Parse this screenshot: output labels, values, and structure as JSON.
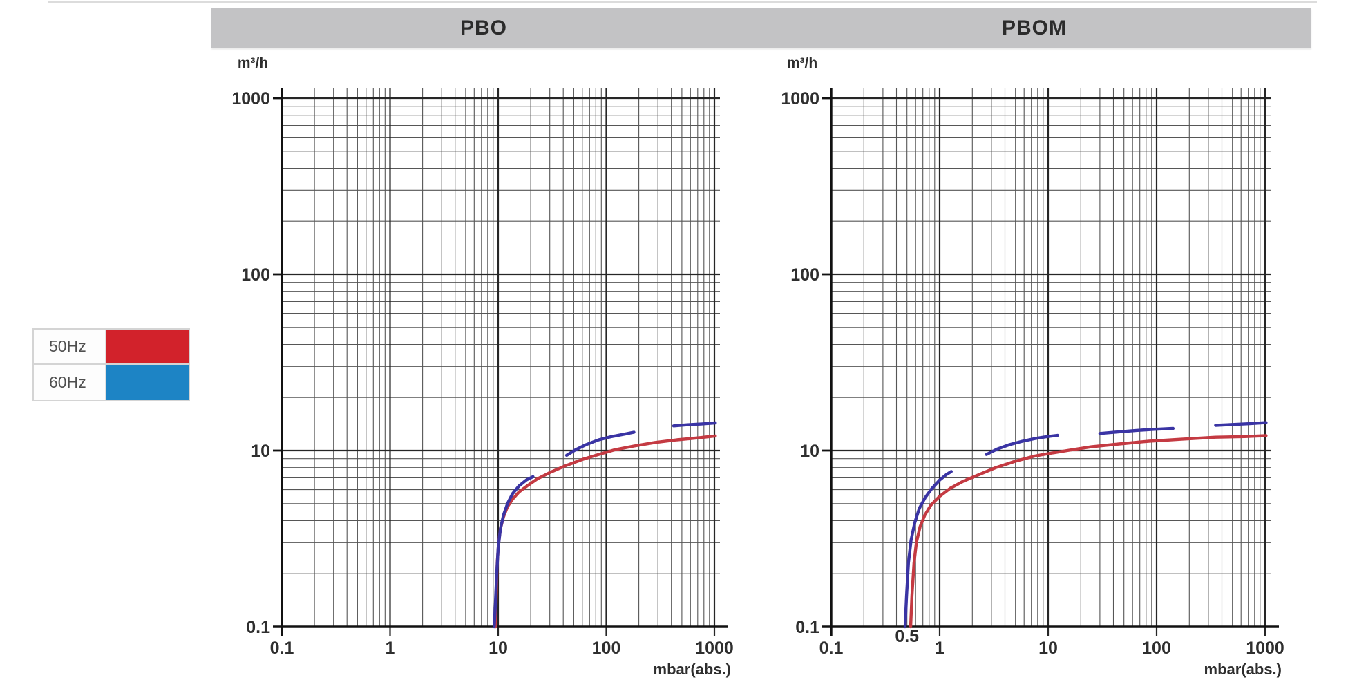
{
  "header": {
    "sections": [
      {
        "label": "PBO"
      },
      {
        "label": "PBOM"
      }
    ],
    "background": "#c3c3c5"
  },
  "legend": {
    "rows": [
      {
        "label": "50Hz",
        "color": "#d2222b"
      },
      {
        "label": "60Hz",
        "color": "#1d84c5"
      }
    ]
  },
  "colors": {
    "grid_minor": "#565656",
    "grid_major": "#262626",
    "axis": "#111111",
    "tick_label": "#2e2e2e",
    "curve_50hz": "#c43a42",
    "curve_60hz": "#3a34a4",
    "header_bg": "#c3c3c5",
    "legend_border": "#d4d4d4",
    "page_bg": "#ffffff"
  },
  "chart_data": [
    {
      "type": "line",
      "title": "PBO",
      "y_unit_label": "m³/h",
      "x_unit_label": "mbar(abs.)",
      "x_scale": "log",
      "y_scale": "log",
      "x_range": [
        0.1,
        1000
      ],
      "grid": true,
      "axis_note": "y axis compressed below 10: bottom gridline labeled 0.1, minor lines 2-9 above it",
      "x_tick_labels": [
        {
          "value": 0.1,
          "label": "0.1"
        },
        {
          "value": 1,
          "label": "1"
        },
        {
          "value": 10,
          "label": "10"
        },
        {
          "value": 100,
          "label": "100"
        },
        {
          "value": 1000,
          "label": "1000"
        }
      ],
      "x_extra_labels": [],
      "y_tick_labels": [
        {
          "value": 1000,
          "label": "1000"
        },
        {
          "value": 100,
          "label": "100"
        },
        {
          "value": 10,
          "label": "10"
        },
        {
          "value": 0.1,
          "label": "0.1"
        }
      ],
      "series": [
        {
          "name": "50Hz",
          "color": "#c43a42",
          "style": "solid",
          "segments": [
            [
              [
                9.45,
                0.1
              ],
              [
                9.6,
                1.5
              ],
              [
                9.8,
                2.3
              ],
              [
                10.1,
                3.0
              ],
              [
                10.5,
                3.6
              ],
              [
                11.2,
                4.2
              ],
              [
                12.2,
                4.8
              ],
              [
                13.6,
                5.3
              ],
              [
                15.5,
                5.8
              ],
              [
                18.5,
                6.3
              ],
              [
                23,
                6.9
              ],
              [
                30,
                7.5
              ],
              [
                42,
                8.2
              ],
              [
                60,
                8.9
              ],
              [
                85,
                9.5
              ],
              [
                120,
                10.1
              ],
              [
                180,
                10.6
              ],
              [
                280,
                11.1
              ],
              [
                450,
                11.5
              ],
              [
                700,
                11.8
              ],
              [
                1020,
                12.1
              ]
            ]
          ]
        },
        {
          "name": "60Hz",
          "color": "#3a34a4",
          "style": "solid",
          "segments": [
            [
              [
                9.2,
                0.1
              ],
              [
                9.4,
                1.3
              ],
              [
                9.7,
                2.0
              ],
              [
                10.0,
                2.8
              ],
              [
                10.5,
                3.6
              ],
              [
                11.2,
                4.3
              ],
              [
                12.2,
                5.0
              ],
              [
                13.6,
                5.7
              ],
              [
                15.6,
                6.3
              ],
              [
                18.2,
                6.8
              ],
              [
                21,
                7.1
              ]
            ],
            [
              [
                43,
                9.4
              ],
              [
                52,
                10.1
              ],
              [
                65,
                10.8
              ],
              [
                85,
                11.5
              ],
              [
                112,
                12.0
              ],
              [
                148,
                12.4
              ],
              [
                180,
                12.7
              ]
            ],
            [
              [
                420,
                13.8
              ],
              [
                560,
                14.0
              ],
              [
                750,
                14.15
              ],
              [
                1020,
                14.35
              ]
            ]
          ]
        }
      ]
    },
    {
      "type": "line",
      "title": "PBOM",
      "y_unit_label": "m³/h",
      "x_unit_label": "mbar(abs.)",
      "x_scale": "log",
      "y_scale": "log",
      "x_range": [
        0.1,
        1000
      ],
      "grid": true,
      "axis_note": "y axis compressed below 10: bottom gridline labeled 0.1, minor lines 2-9 above it",
      "x_tick_labels": [
        {
          "value": 0.1,
          "label": "0.1"
        },
        {
          "value": 1,
          "label": "1"
        },
        {
          "value": 10,
          "label": "10"
        },
        {
          "value": 100,
          "label": "100"
        },
        {
          "value": 1000,
          "label": "1000"
        }
      ],
      "x_extra_labels": [
        {
          "value": 0.5,
          "label": "0.5"
        }
      ],
      "y_tick_labels": [
        {
          "value": 1000,
          "label": "1000"
        },
        {
          "value": 100,
          "label": "100"
        },
        {
          "value": 10,
          "label": "10"
        },
        {
          "value": 0.1,
          "label": "0.1"
        }
      ],
      "series": [
        {
          "name": "50Hz",
          "color": "#c43a42",
          "style": "solid",
          "segments": [
            [
              [
                0.54,
                0.1
              ],
              [
                0.555,
                1.5
              ],
              [
                0.58,
                2.3
              ],
              [
                0.61,
                3.0
              ],
              [
                0.66,
                3.7
              ],
              [
                0.73,
                4.3
              ],
              [
                0.83,
                4.9
              ],
              [
                1.0,
                5.5
              ],
              [
                1.25,
                6.1
              ],
              [
                1.65,
                6.7
              ],
              [
                2.3,
                7.3
              ],
              [
                3.3,
                8.0
              ],
              [
                5,
                8.7
              ],
              [
                7.5,
                9.3
              ],
              [
                10,
                9.6
              ],
              [
                15,
                10.0
              ],
              [
                25,
                10.5
              ],
              [
                45,
                10.9
              ],
              [
                85,
                11.3
              ],
              [
                170,
                11.6
              ],
              [
                350,
                11.9
              ],
              [
                650,
                12.0
              ],
              [
                1020,
                12.15
              ]
            ]
          ]
        },
        {
          "name": "60Hz",
          "color": "#3a34a4",
          "style": "solid",
          "segments": [
            [
              [
                0.48,
                0.1
              ],
              [
                0.495,
                1.5
              ],
              [
                0.515,
                2.3
              ],
              [
                0.545,
                3.1
              ],
              [
                0.59,
                3.9
              ],
              [
                0.65,
                4.7
              ],
              [
                0.735,
                5.4
              ],
              [
                0.85,
                6.1
              ],
              [
                1.0,
                6.8
              ],
              [
                1.15,
                7.3
              ],
              [
                1.28,
                7.6
              ]
            ],
            [
              [
                2.7,
                9.5
              ],
              [
                3.4,
                10.2
              ],
              [
                4.4,
                10.8
              ],
              [
                5.8,
                11.3
              ],
              [
                7.6,
                11.7
              ],
              [
                9.8,
                12.0
              ],
              [
                12.2,
                12.2
              ]
            ],
            [
              [
                30,
                12.5
              ],
              [
                44,
                12.75
              ],
              [
                65,
                13.0
              ],
              [
                95,
                13.2
              ],
              [
                142,
                13.35
              ]
            ],
            [
              [
                350,
                13.9
              ],
              [
                500,
                14.05
              ],
              [
                700,
                14.2
              ],
              [
                1020,
                14.4
              ]
            ]
          ]
        }
      ]
    }
  ]
}
